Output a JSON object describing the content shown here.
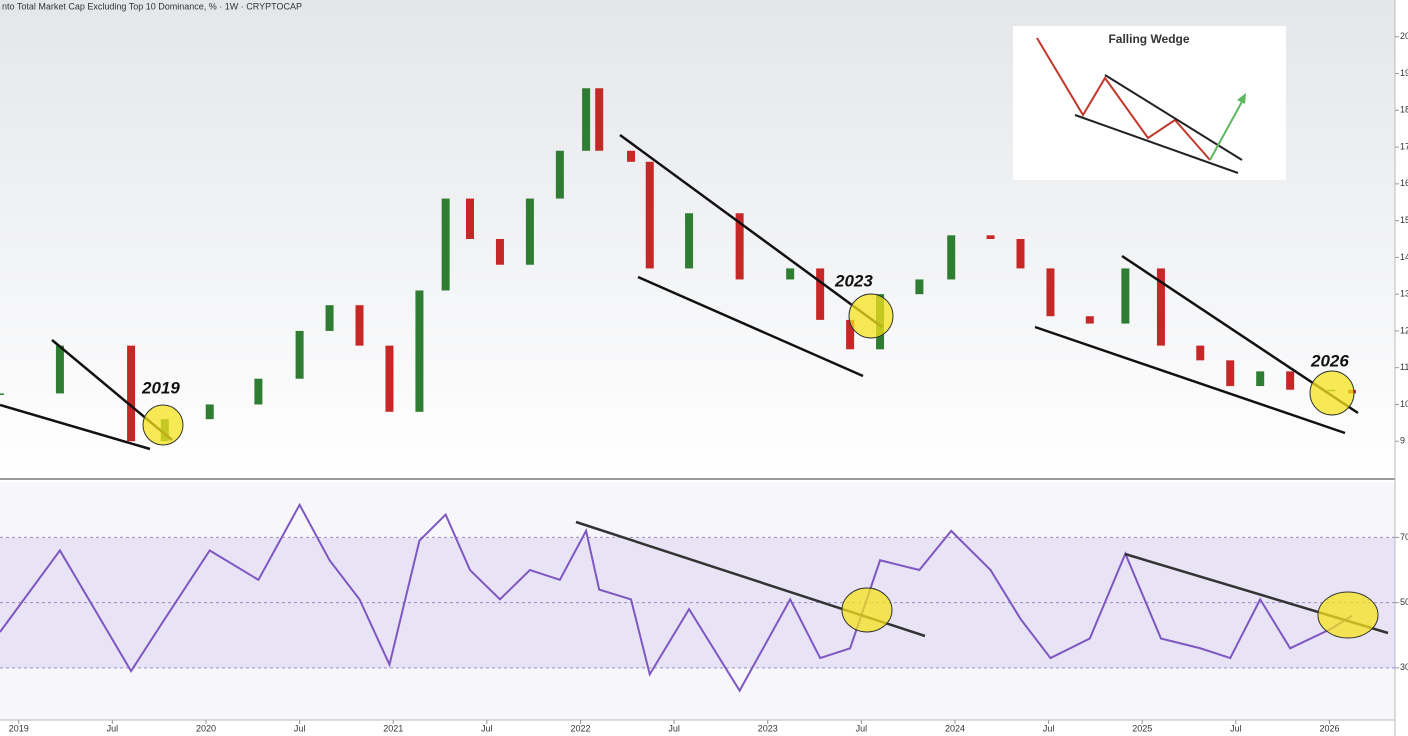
{
  "chart_data": [
    {
      "type": "candlestick",
      "title": "nto Total Market Cap Excluding Top 10 Dominance, % · 1W · CRYPTOCAP",
      "annotations": [
        "2019",
        "2023",
        "2026",
        "Falling Wedge"
      ],
      "x": [
        2018.9,
        2019.22,
        2019.6,
        2019.78,
        2020.02,
        2020.28,
        2020.5,
        2020.66,
        2020.82,
        2020.98,
        2021.14,
        2021.28,
        2021.41,
        2021.57,
        2021.73,
        2021.89,
        2022.03,
        2022.1,
        2022.27,
        2022.37,
        2022.58,
        2022.85,
        2023.12,
        2023.28,
        2023.44,
        2023.6,
        2023.81,
        2023.98,
        2024.19,
        2024.35,
        2024.51,
        2024.72,
        2024.91,
        2025.1,
        2025.31,
        2025.47,
        2025.63,
        2025.79,
        2026.01,
        2026.12
      ],
      "values": [
        10.3,
        11.6,
        9.0,
        9.6,
        10.0,
        10.7,
        12.0,
        12.7,
        11.6,
        9.8,
        13.1,
        15.6,
        14.5,
        13.8,
        15.6,
        16.9,
        18.6,
        16.9,
        16.6,
        13.7,
        15.2,
        13.4,
        13.7,
        12.3,
        11.5,
        13.0,
        13.4,
        14.6,
        14.5,
        13.7,
        12.4,
        12.2,
        13.7,
        11.6,
        11.2,
        10.5,
        10.9,
        10.4,
        10.4,
        10.3
      ],
      "up_color": "#2e7d32",
      "down_color": "#c62828",
      "xlim": [
        2018.9,
        2026.35
      ],
      "ylim": [
        8,
        21
      ],
      "yticks": [
        9,
        10,
        11,
        12,
        13,
        14,
        15,
        16,
        17,
        18,
        19,
        20
      ]
    },
    {
      "type": "line",
      "x": [
        2018.9,
        2019.22,
        2019.6,
        2019.78,
        2020.02,
        2020.28,
        2020.5,
        2020.66,
        2020.82,
        2020.98,
        2021.14,
        2021.28,
        2021.41,
        2021.57,
        2021.73,
        2021.89,
        2022.03,
        2022.1,
        2022.27,
        2022.37,
        2022.58,
        2022.85,
        2023.12,
        2023.28,
        2023.44,
        2023.6,
        2023.81,
        2023.98,
        2024.19,
        2024.35,
        2024.51,
        2024.72,
        2024.91,
        2025.1,
        2025.31,
        2025.47,
        2025.63,
        2025.79,
        2026.01,
        2026.12
      ],
      "values": [
        41,
        66,
        29,
        45,
        66,
        57,
        80,
        63,
        51,
        31,
        69,
        77,
        60,
        51,
        60,
        57,
        72,
        54,
        51,
        28,
        48,
        23,
        51,
        33,
        36,
        63,
        60,
        72,
        60,
        45,
        33,
        39,
        65,
        39,
        36,
        33,
        51,
        36,
        42,
        46
      ],
      "color": "#7e57c2",
      "xlim": [
        2018.9,
        2026.35
      ],
      "ylim": [
        14,
        87
      ],
      "yticks": [
        30,
        50,
        70
      ],
      "xticks": [
        2019,
        {
          "value": 2019.5,
          "label": "Jul"
        },
        2020,
        {
          "value": 2020.5,
          "label": "Jul"
        },
        2021,
        {
          "value": 2021.5,
          "label": "Jul"
        },
        2022,
        {
          "value": 2022.5,
          "label": "Jul"
        },
        2023,
        {
          "value": 2023.5,
          "label": "Jul"
        },
        2024,
        {
          "value": 2024.5,
          "label": "Jul"
        },
        2025,
        {
          "value": 2025.5,
          "label": "Jul"
        },
        2026
      ]
    }
  ]
}
